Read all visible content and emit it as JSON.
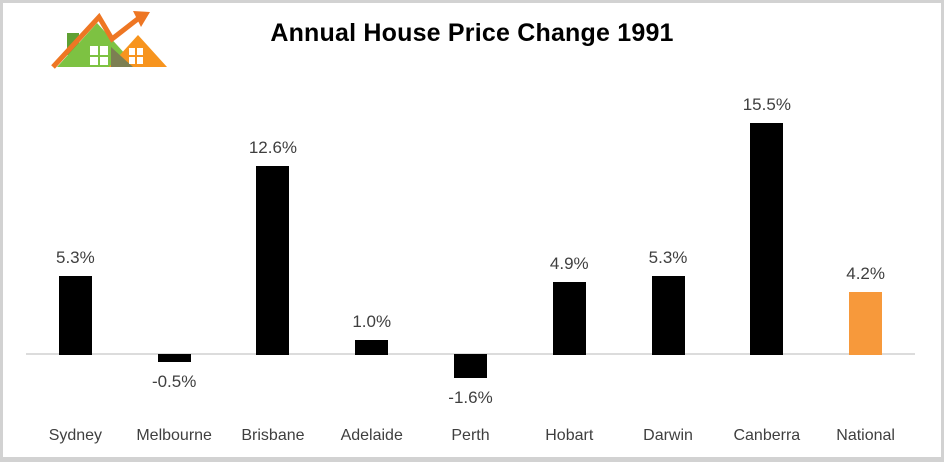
{
  "title": "Annual House Price Change 1991",
  "logo": {
    "icon": "houses-growth-arrow-logo"
  },
  "colors": {
    "bar_default": "#000000",
    "bar_highlight": "#f7993b",
    "axis_line": "#dcdcdc",
    "label_text": "#3f3f3f",
    "title_text": "#000000",
    "frame_border": "#d2d2d2",
    "logo_green": "#7dc242",
    "logo_dark_green": "#5fa033",
    "logo_orange": "#f7941e",
    "logo_arrow_orange": "#ee7623",
    "logo_shadow_olive": "#7c7f52"
  },
  "chart_data": {
    "type": "bar",
    "title": "Annual House Price Change 1991",
    "categories": [
      "Sydney",
      "Melbourne",
      "Brisbane",
      "Adelaide",
      "Perth",
      "Hobart",
      "Darwin",
      "Canberra",
      "National"
    ],
    "values": [
      5.3,
      -0.5,
      12.6,
      1.0,
      -1.6,
      4.9,
      5.3,
      15.5,
      4.2
    ],
    "data_labels": [
      "5.3%",
      "-0.5%",
      "12.6%",
      "1.0%",
      "-1.6%",
      "4.9%",
      "5.3%",
      "15.5%",
      "4.2%"
    ],
    "highlight_category": "National",
    "xlabel": "",
    "ylabel": "",
    "ylim": [
      -2.5,
      17
    ],
    "grid": false,
    "legend": false,
    "y_axis_visible": false,
    "data_labels_visible": true
  }
}
